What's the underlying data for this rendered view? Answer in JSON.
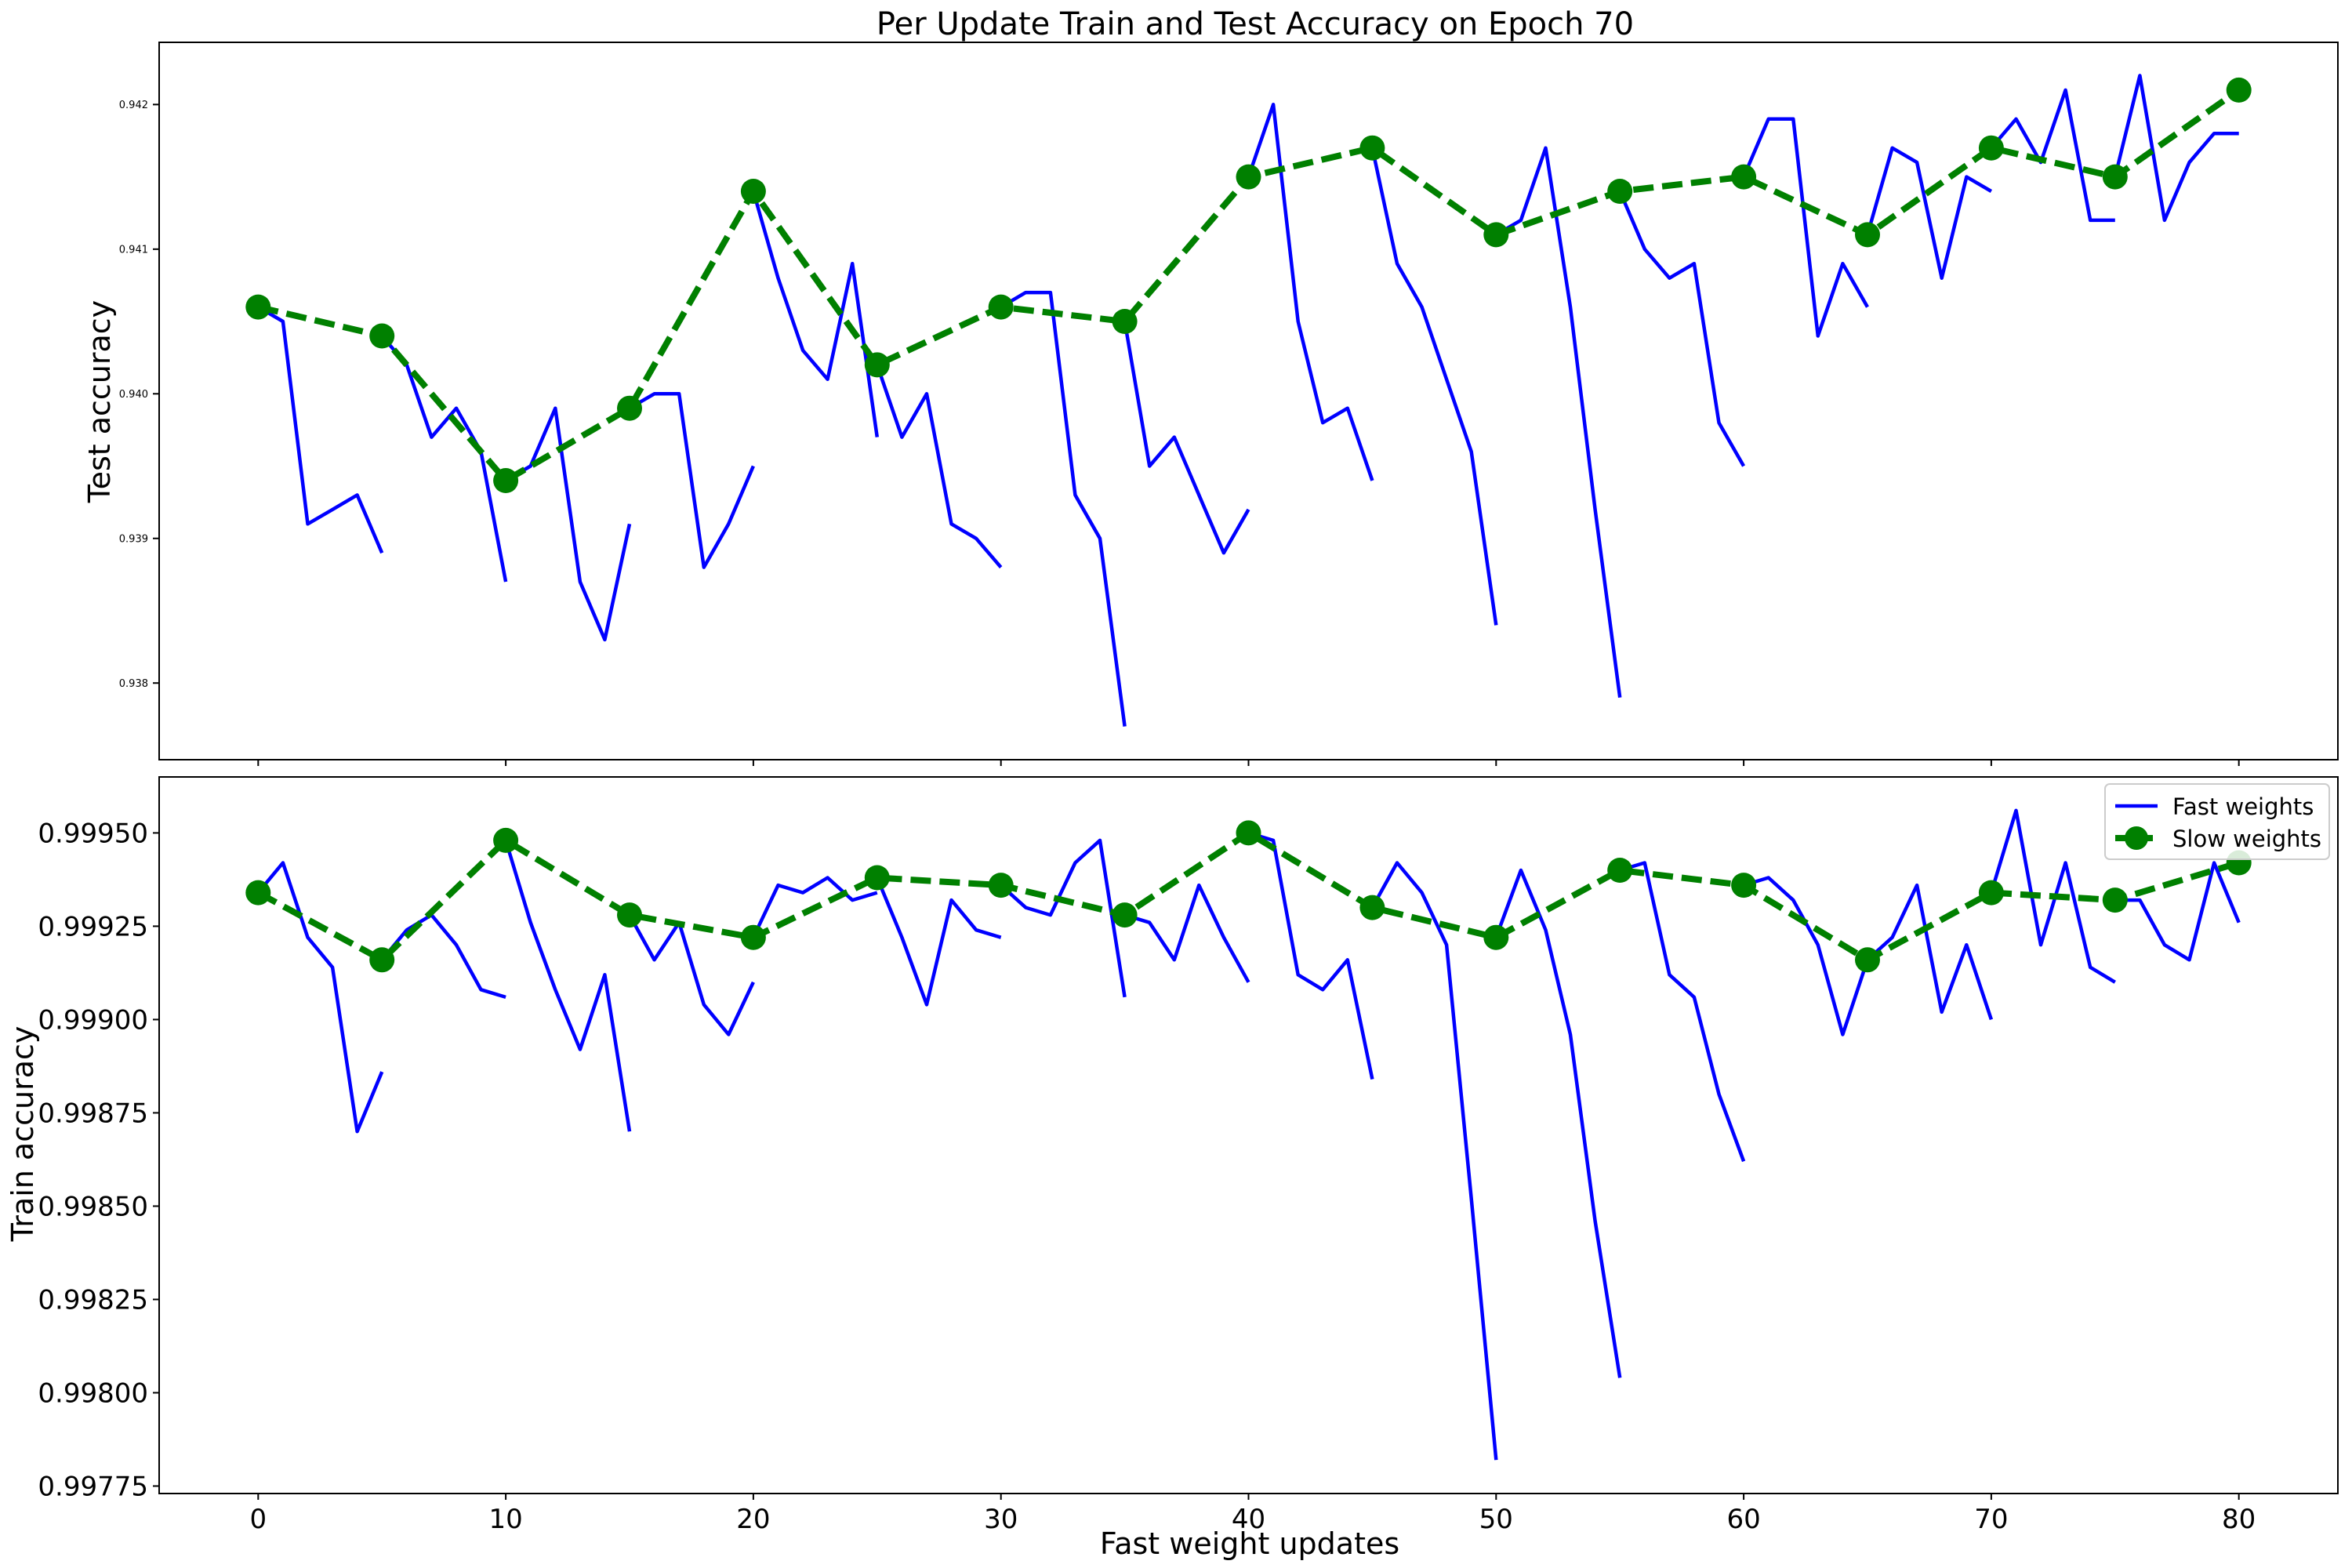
{
  "chart_data": [
    {
      "type": "line",
      "title": "Per Update Train and Test Accuracy on Epoch 70",
      "xlabel": "",
      "ylabel": "Test accuracy",
      "xlim": [
        -4,
        84
      ],
      "ylim": [
        0.93747,
        0.94243
      ],
      "x_ticks": [
        0,
        10,
        20,
        30,
        40,
        50,
        60,
        70,
        80
      ],
      "x_tick_labels_shown": false,
      "y_ticks": [
        0.938,
        0.939,
        0.94,
        0.941,
        0.942
      ],
      "y_tick_labels": [
        "0.938",
        "0.939",
        "0.940",
        "0.941",
        "0.942"
      ],
      "grid": false,
      "series": [
        {
          "name": "Fast weights",
          "color": "#0000ff",
          "segments": [
            {
              "x": [
                0,
                1,
                2,
                3,
                4,
                5
              ],
              "y": [
                0.9406,
                0.9405,
                0.9391,
                0.9392,
                0.9393,
                0.9389
              ]
            },
            {
              "x": [
                5,
                6,
                7,
                8,
                9,
                10
              ],
              "y": [
                0.9404,
                0.9402,
                0.9397,
                0.9399,
                0.9396,
                0.9387
              ]
            },
            {
              "x": [
                10,
                11,
                12,
                13,
                14,
                15
              ],
              "y": [
                0.9394,
                0.9395,
                0.9399,
                0.9387,
                0.9383,
                0.9391
              ]
            },
            {
              "x": [
                15,
                16,
                17,
                18,
                19,
                20
              ],
              "y": [
                0.9399,
                0.94,
                0.94,
                0.9388,
                0.9391,
                0.9395
              ]
            },
            {
              "x": [
                20,
                21,
                22,
                23,
                24,
                25
              ],
              "y": [
                0.9414,
                0.9408,
                0.9403,
                0.9401,
                0.9409,
                0.9397
              ]
            },
            {
              "x": [
                25,
                26,
                27,
                28,
                29,
                30
              ],
              "y": [
                0.9402,
                0.9397,
                0.94,
                0.9391,
                0.939,
                0.9388
              ]
            },
            {
              "x": [
                30,
                31,
                32,
                33,
                34,
                35
              ],
              "y": [
                0.9406,
                0.9407,
                0.9407,
                0.9393,
                0.939,
                0.9377
              ]
            },
            {
              "x": [
                35,
                36,
                37,
                38,
                39,
                40
              ],
              "y": [
                0.9405,
                0.9395,
                0.9397,
                0.9393,
                0.9389,
                0.9392
              ]
            },
            {
              "x": [
                40,
                41,
                42,
                43,
                44,
                45
              ],
              "y": [
                0.9415,
                0.942,
                0.9405,
                0.9398,
                0.9399,
                0.9394
              ]
            },
            {
              "x": [
                45,
                46,
                47,
                48,
                49,
                50
              ],
              "y": [
                0.9417,
                0.9409,
                0.9406,
                0.9401,
                0.9396,
                0.9384
              ]
            },
            {
              "x": [
                50,
                51,
                52,
                53,
                54,
                55
              ],
              "y": [
                0.9411,
                0.9412,
                0.9417,
                0.9406,
                0.9392,
                0.9379
              ]
            },
            {
              "x": [
                55,
                56,
                57,
                58,
                59,
                60
              ],
              "y": [
                0.9414,
                0.941,
                0.9408,
                0.9409,
                0.9398,
                0.9395
              ]
            },
            {
              "x": [
                60,
                61,
                62,
                63,
                64,
                65
              ],
              "y": [
                0.9415,
                0.9419,
                0.9419,
                0.9404,
                0.9409,
                0.9406
              ]
            },
            {
              "x": [
                65,
                66,
                67,
                68,
                69,
                70
              ],
              "y": [
                0.9411,
                0.9417,
                0.9416,
                0.9408,
                0.9415,
                0.9414
              ]
            },
            {
              "x": [
                70,
                71,
                72,
                73,
                74,
                75
              ],
              "y": [
                0.9417,
                0.9419,
                0.9416,
                0.9421,
                0.9412,
                0.9412
              ]
            },
            {
              "x": [
                75,
                76,
                77,
                78,
                79,
                80
              ],
              "y": [
                0.9415,
                0.9422,
                0.9412,
                0.9416,
                0.9418,
                0.9418
              ]
            }
          ]
        },
        {
          "name": "Slow weights",
          "color": "#008000",
          "x": [
            0,
            5,
            10,
            15,
            20,
            25,
            30,
            35,
            40,
            45,
            50,
            55,
            60,
            65,
            70,
            75,
            80
          ],
          "y": [
            0.9406,
            0.9404,
            0.9394,
            0.9399,
            0.9414,
            0.9402,
            0.9406,
            0.9405,
            0.9415,
            0.9417,
            0.9411,
            0.9414,
            0.9415,
            0.9411,
            0.9417,
            0.9415,
            0.9421
          ]
        }
      ]
    },
    {
      "type": "line",
      "title": "",
      "xlabel": "Fast weight updates",
      "ylabel": "Train accuracy",
      "xlim": [
        -4,
        84
      ],
      "ylim": [
        0.99773,
        0.99965
      ],
      "x_ticks": [
        0,
        10,
        20,
        30,
        40,
        50,
        60,
        70,
        80
      ],
      "x_tick_labels": [
        "0",
        "10",
        "20",
        "30",
        "40",
        "50",
        "60",
        "70",
        "80"
      ],
      "y_ticks": [
        0.99775,
        0.998,
        0.99825,
        0.9985,
        0.99875,
        0.999,
        0.99925,
        0.9995
      ],
      "y_tick_labels": [
        "0.99775",
        "0.99800",
        "0.99825",
        "0.99850",
        "0.99875",
        "0.99900",
        "0.99925",
        "0.99950"
      ],
      "grid": false,
      "legend": {
        "placement": "upper-right",
        "entries": [
          "Fast weights",
          "Slow weights"
        ]
      },
      "series": [
        {
          "name": "Fast weights",
          "color": "#0000ff",
          "segments": [
            {
              "x": [
                0,
                1,
                2,
                3,
                4,
                5
              ],
              "y": [
                0.99934,
                0.99942,
                0.99922,
                0.99914,
                0.9987,
                0.99886
              ]
            },
            {
              "x": [
                5,
                6,
                7,
                8,
                9,
                10
              ],
              "y": [
                0.99916,
                0.99924,
                0.99928,
                0.9992,
                0.99908,
                0.99906
              ]
            },
            {
              "x": [
                10,
                11,
                12,
                13,
                14,
                15
              ],
              "y": [
                0.99948,
                0.99926,
                0.99908,
                0.99892,
                0.99912,
                0.9987
              ]
            },
            {
              "x": [
                15,
                16,
                17,
                18,
                19,
                20
              ],
              "y": [
                0.99928,
                0.99916,
                0.99926,
                0.99904,
                0.99896,
                0.9991
              ]
            },
            {
              "x": [
                20,
                21,
                22,
                23,
                24,
                25
              ],
              "y": [
                0.99922,
                0.99936,
                0.99934,
                0.99938,
                0.99932,
                0.99934
              ]
            },
            {
              "x": [
                25,
                26,
                27,
                28,
                29,
                30
              ],
              "y": [
                0.99938,
                0.99922,
                0.99904,
                0.99932,
                0.99924,
                0.99922
              ]
            },
            {
              "x": [
                30,
                31,
                32,
                33,
                34,
                35
              ],
              "y": [
                0.99936,
                0.9993,
                0.99928,
                0.99942,
                0.99948,
                0.99906
              ]
            },
            {
              "x": [
                35,
                36,
                37,
                38,
                39,
                40
              ],
              "y": [
                0.99928,
                0.99926,
                0.99916,
                0.99936,
                0.99922,
                0.9991
              ]
            },
            {
              "x": [
                40,
                41,
                42,
                43,
                44,
                45
              ],
              "y": [
                0.9995,
                0.99948,
                0.99912,
                0.99908,
                0.99916,
                0.99884
              ]
            },
            {
              "x": [
                45,
                46,
                47,
                48,
                49,
                50
              ],
              "y": [
                0.9993,
                0.99942,
                0.99934,
                0.9992,
                0.99852,
                0.99782
              ]
            },
            {
              "x": [
                50,
                51,
                52,
                53,
                54,
                55
              ],
              "y": [
                0.99922,
                0.9994,
                0.99924,
                0.99896,
                0.99846,
                0.99804
              ]
            },
            {
              "x": [
                55,
                56,
                57,
                58,
                59,
                60
              ],
              "y": [
                0.9994,
                0.99942,
                0.99912,
                0.99906,
                0.9988,
                0.99862
              ]
            },
            {
              "x": [
                60,
                61,
                62,
                63,
                64,
                65
              ],
              "y": [
                0.99936,
                0.99938,
                0.99932,
                0.9992,
                0.99896,
                0.99916
              ]
            },
            {
              "x": [
                65,
                66,
                67,
                68,
                69,
                70
              ],
              "y": [
                0.99916,
                0.99922,
                0.99936,
                0.99902,
                0.9992,
                0.999
              ]
            },
            {
              "x": [
                70,
                71,
                72,
                73,
                74,
                75
              ],
              "y": [
                0.99934,
                0.99956,
                0.9992,
                0.99942,
                0.99914,
                0.9991
              ]
            },
            {
              "x": [
                75,
                76,
                77,
                78,
                79,
                80
              ],
              "y": [
                0.99932,
                0.99932,
                0.9992,
                0.99916,
                0.99942,
                0.99926
              ]
            }
          ]
        },
        {
          "name": "Slow weights",
          "color": "#008000",
          "x": [
            0,
            5,
            10,
            15,
            20,
            25,
            30,
            35,
            40,
            45,
            50,
            55,
            60,
            65,
            70,
            75,
            80
          ],
          "y": [
            0.99934,
            0.99916,
            0.99948,
            0.99928,
            0.99922,
            0.99938,
            0.99936,
            0.99928,
            0.9995,
            0.9993,
            0.99922,
            0.9994,
            0.99936,
            0.99916,
            0.99934,
            0.99932,
            0.99942
          ]
        }
      ]
    }
  ]
}
